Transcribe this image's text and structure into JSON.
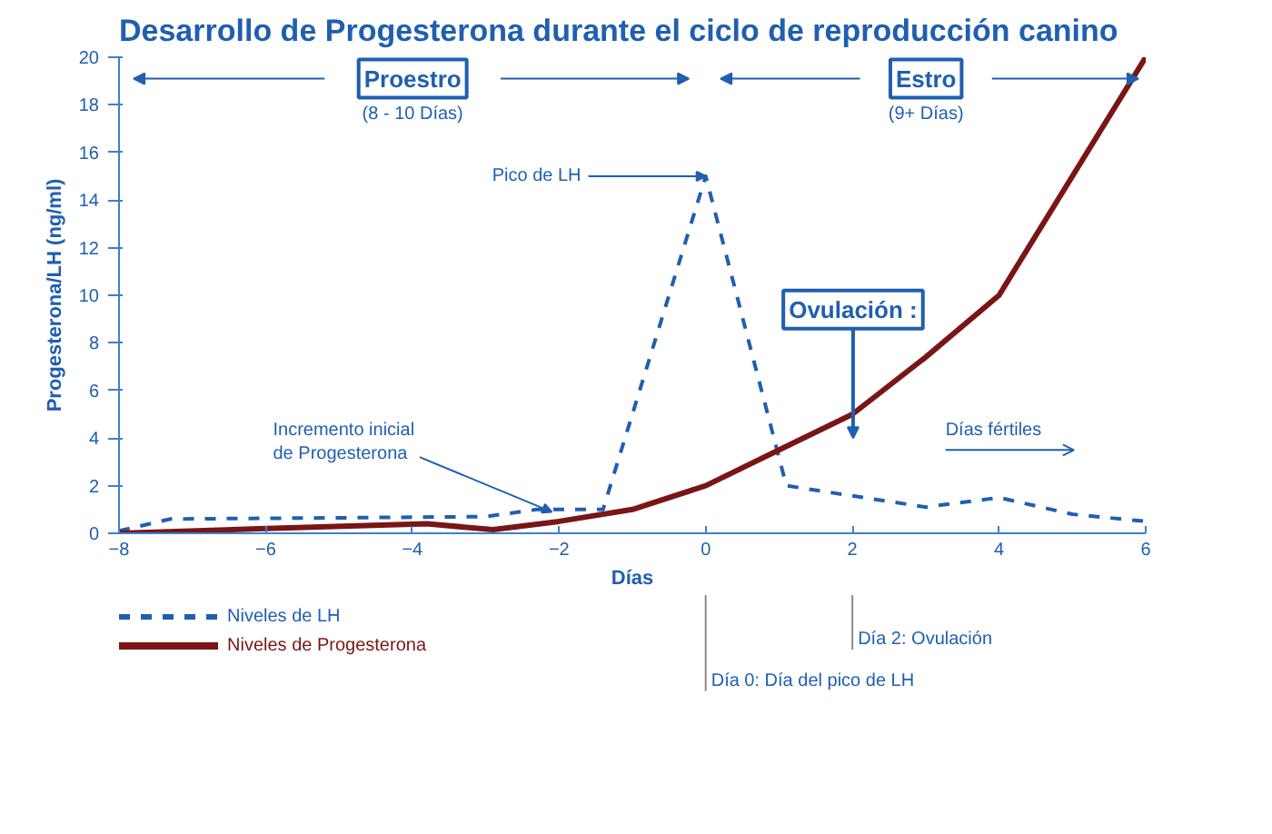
{
  "chart_data": {
    "type": "line",
    "title": "Desarrollo de Progesterona durante el ciclo de reproducción canino",
    "xlabel": "Días",
    "ylabel": "Progesterona/LH (ng/ml)",
    "xlim": [
      -8,
      6
    ],
    "xticks": [
      -8,
      -6,
      -4,
      -2,
      0,
      2,
      4,
      6
    ],
    "ylim": [
      0,
      20
    ],
    "yticks": [
      0,
      2,
      4,
      6,
      8,
      10,
      12,
      14,
      16,
      18,
      20
    ],
    "grid": false,
    "legend": "bottom left",
    "series": [
      {
        "name": "Niveles de LH",
        "color": "#1f5fb0",
        "line_style": "dashed",
        "x": [
          -8,
          -7.3,
          -5,
          -3,
          -2.3,
          -1.4,
          0,
          1.1,
          3,
          4,
          5,
          6
        ],
        "values": [
          0.1,
          0.6,
          0.65,
          0.7,
          1.0,
          1.0,
          15,
          2.0,
          1.1,
          1.5,
          0.8,
          0.5
        ]
      },
      {
        "name": "Niveles de Progesterona",
        "color": "#7a1515",
        "line_style": "solid",
        "x": [
          -8,
          -6,
          -3.8,
          -2.9,
          -2,
          -1,
          0,
          1,
          2,
          3,
          4,
          5,
          6
        ],
        "values": [
          0,
          0.2,
          0.4,
          0.15,
          0.5,
          1.0,
          2.0,
          3.5,
          5.0,
          7.4,
          10,
          15,
          20
        ]
      }
    ],
    "annotations": [
      "Proestro",
      "(8 - 10 Días)",
      "Estro",
      "(9+ Días)",
      {
        "text": "Pico de LH",
        "x": 0,
        "y": 15
      },
      "Ovulación :",
      "Días fértiles",
      {
        "text": "Incremento inicial\nde Progesterona",
        "x": -2.1,
        "y": 0.9
      },
      "Día 0: Día del pico de LH",
      "Día 2: Ovulación"
    ]
  }
}
